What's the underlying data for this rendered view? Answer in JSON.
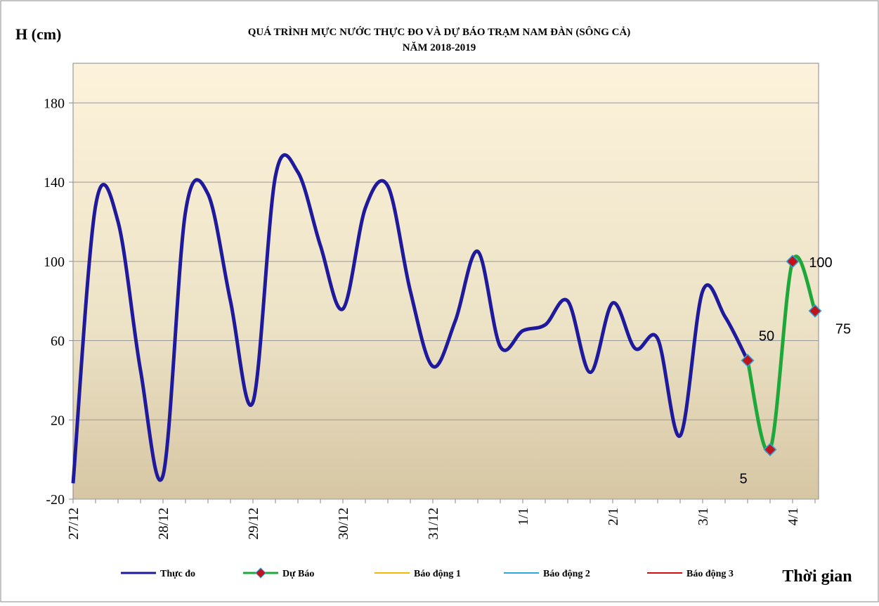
{
  "chart_data": {
    "type": "line",
    "title": "QUÁ TRÌNH MỰC NƯỚC THỰC ĐO VÀ DỰ BÁO TRẠM NAM ĐÀN (SÔNG CẢ)",
    "subtitle": "NĂM 2018-2019",
    "y_label": "H (cm)",
    "x_label": "Thời gian",
    "categories": [
      "27/12",
      null,
      null,
      null,
      "28/12",
      null,
      null,
      null,
      "29/12",
      null,
      null,
      null,
      "30/12",
      null,
      null,
      null,
      "31/12",
      null,
      null,
      null,
      "1/1",
      null,
      null,
      null,
      "2/1",
      null,
      null,
      null,
      "3/1",
      null,
      null,
      null,
      "4/1",
      null
    ],
    "series": [
      {
        "name": "Thực đo",
        "color": "#1f1a9c",
        "values": [
          -12,
          128,
          120,
          45,
          -8,
          125,
          134,
          80,
          29,
          143,
          145,
          108,
          76,
          127,
          138,
          85,
          47,
          70,
          105,
          57,
          65,
          68,
          80,
          44,
          79,
          56,
          61,
          12,
          85,
          72,
          50,
          null,
          null,
          null
        ]
      },
      {
        "name": "Dự Báo",
        "color": "#1fa83a",
        "values": [
          null,
          null,
          null,
          null,
          null,
          null,
          null,
          null,
          null,
          null,
          null,
          null,
          null,
          null,
          null,
          null,
          null,
          null,
          null,
          null,
          null,
          null,
          null,
          null,
          null,
          null,
          null,
          null,
          null,
          null,
          50,
          5,
          100,
          75
        ]
      },
      {
        "name": "Báo động 1",
        "color": "#f5b800",
        "values": [
          null,
          null,
          null,
          null,
          null,
          null,
          null,
          null,
          null,
          null,
          null,
          null,
          null,
          null,
          null,
          null,
          null,
          null,
          null,
          null,
          null,
          null,
          null,
          null,
          null,
          null,
          null,
          null,
          null,
          null,
          null,
          null,
          null,
          null
        ]
      },
      {
        "name": "Báo động 2",
        "color": "#29a8e0",
        "values": [
          null,
          null,
          null,
          null,
          null,
          null,
          null,
          null,
          null,
          null,
          null,
          null,
          null,
          null,
          null,
          null,
          null,
          null,
          null,
          null,
          null,
          null,
          null,
          null,
          null,
          null,
          null,
          null,
          null,
          null,
          null,
          null,
          null,
          null
        ]
      },
      {
        "name": "Báo động 3",
        "color": "#d01010",
        "values": [
          null,
          null,
          null,
          null,
          null,
          null,
          null,
          null,
          null,
          null,
          null,
          null,
          null,
          null,
          null,
          null,
          null,
          null,
          null,
          null,
          null,
          null,
          null,
          null,
          null,
          null,
          null,
          null,
          null,
          null,
          null,
          null,
          null,
          null
        ]
      }
    ],
    "ylim": [
      -20,
      200
    ],
    "yticks": [
      -20,
      20,
      60,
      100,
      140,
      180
    ],
    "grid": true
  }
}
